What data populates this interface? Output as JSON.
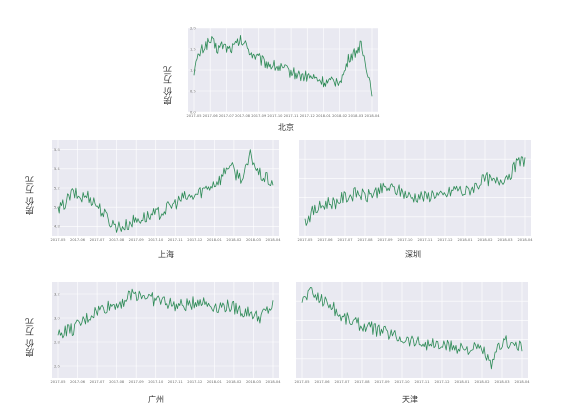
{
  "chart_data": [
    {
      "type": "line",
      "title": "北京",
      "xlabel": "北京",
      "ylabel": "房价 万元",
      "x_ticks": [
        "2017-05",
        "2017-06",
        "2017-07",
        "2017-08",
        "2017-09",
        "2017-10",
        "2017-11",
        "2017-12",
        "2018-01",
        "2018-02",
        "2018-03",
        "2018-04"
      ],
      "y_ticks": [
        "0.0",
        "0.5",
        "1.0",
        "1.5",
        "2.0"
      ],
      "ylim": [
        0.0,
        2.0
      ],
      "color": "#2e8b57",
      "series": [
        {
          "values": [
            1.0,
            1.4,
            1.6,
            1.7,
            1.5,
            1.6,
            1.5,
            1.55,
            1.7,
            1.6,
            1.4,
            1.3,
            1.2,
            1.15,
            1.1,
            1.05,
            1.0,
            0.95,
            0.9,
            0.85,
            0.85,
            0.8,
            0.75,
            0.7,
            0.7,
            0.75,
            0.85,
            1.3,
            1.4,
            1.6,
            1.1,
            0.5
          ]
        }
      ]
    },
    {
      "type": "line",
      "title": "上海",
      "xlabel": "上海",
      "ylabel": "房价 万元",
      "x_ticks": [
        "2017-05",
        "2017-06",
        "2017-07",
        "2017-08",
        "2017-09",
        "2017-10",
        "2017-11",
        "2017-12",
        "2018-01",
        "2018-02",
        "2018-03",
        "2018-04"
      ],
      "y_ticks": [
        "4.8",
        "5.0",
        "5.2",
        "5.4",
        "5.6"
      ],
      "ylim": [
        4.7,
        5.7
      ],
      "color": "#2e8b57",
      "series": [
        {
          "values": [
            4.95,
            5.05,
            5.15,
            5.1,
            5.12,
            5.05,
            4.95,
            4.85,
            4.8,
            4.8,
            4.85,
            4.88,
            4.9,
            4.92,
            4.95,
            5.0,
            5.05,
            5.1,
            5.1,
            5.15,
            5.2,
            5.25,
            5.3,
            5.45,
            5.35,
            5.3,
            5.55,
            5.35,
            5.3,
            5.25
          ]
        }
      ]
    },
    {
      "type": "line",
      "title": "深圳",
      "xlabel": "深圳",
      "ylabel": "",
      "x_ticks": [
        "2017-05",
        "2017-06",
        "2017-07",
        "2017-08",
        "2017-09",
        "2017-10",
        "2017-11",
        "2017-12",
        "2018-01",
        "2018-02",
        "2018-03",
        "2018-04"
      ],
      "y_ticks": [],
      "ylim": [
        4.7,
        5.7
      ],
      "color": "#2e8b57",
      "series": [
        {
          "values": [
            4.85,
            4.95,
            5.0,
            5.05,
            5.05,
            5.1,
            5.12,
            5.15,
            5.1,
            5.15,
            5.18,
            5.2,
            5.18,
            5.15,
            5.1,
            5.12,
            5.1,
            5.15,
            5.1,
            5.15,
            5.2,
            5.15,
            5.2,
            5.25,
            5.3,
            5.25,
            5.3,
            5.35,
            5.45,
            5.5
          ]
        }
      ]
    },
    {
      "type": "line",
      "title": "广州",
      "xlabel": "广州",
      "ylabel": "房价 万元",
      "x_ticks": [
        "2017-05",
        "2017-06",
        "2017-07",
        "2017-08",
        "2017-09",
        "2017-10",
        "2017-11",
        "2017-12",
        "2018-01",
        "2018-02",
        "2018-03",
        "2018-04"
      ],
      "y_ticks": [
        "2.6",
        "2.8",
        "3.0",
        "3.2"
      ],
      "ylim": [
        2.5,
        3.3
      ],
      "color": "#2e8b57",
      "series": [
        {
          "values": [
            2.85,
            2.9,
            2.9,
            2.95,
            3.0,
            3.05,
            3.08,
            3.1,
            3.12,
            3.15,
            3.2,
            3.2,
            3.18,
            3.15,
            3.15,
            3.12,
            3.1,
            3.1,
            3.12,
            3.15,
            3.12,
            3.1,
            3.1,
            3.1,
            3.08,
            3.05,
            3.05,
            3.0,
            3.05,
            3.1
          ]
        }
      ]
    },
    {
      "type": "line",
      "title": "天津",
      "xlabel": "天津",
      "ylabel": "",
      "x_ticks": [
        "2017-05",
        "2017-06",
        "2017-07",
        "2017-08",
        "2017-09",
        "2017-10",
        "2017-11",
        "2017-12",
        "2018-01",
        "2018-02",
        "2018-03",
        "2018-04"
      ],
      "y_ticks": [],
      "ylim": [
        1.1,
        2.1
      ],
      "color": "#2e8b57",
      "series": [
        {
          "values": [
            1.9,
            2.0,
            1.95,
            1.9,
            1.85,
            1.75,
            1.72,
            1.68,
            1.65,
            1.62,
            1.6,
            1.58,
            1.55,
            1.52,
            1.5,
            1.48,
            1.46,
            1.45,
            1.44,
            1.43,
            1.42,
            1.42,
            1.4,
            1.4,
            1.38,
            1.2,
            1.45,
            1.48,
            1.45,
            1.42
          ]
        }
      ]
    }
  ]
}
